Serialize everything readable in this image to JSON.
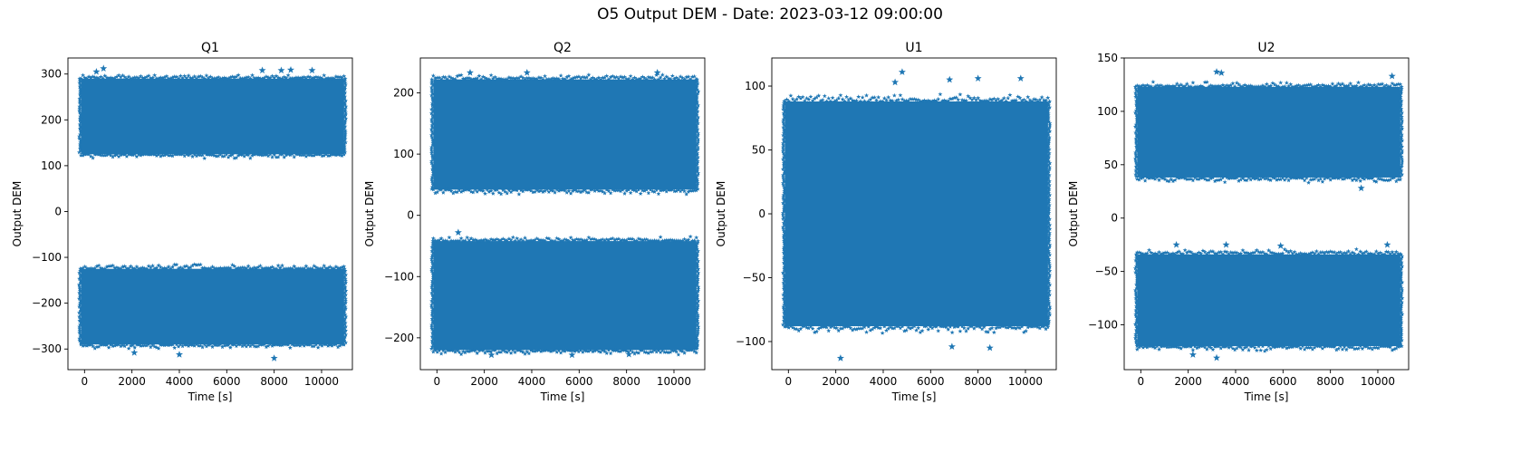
{
  "figure": {
    "title": "O5 Output DEM - Date: 2023-03-12 09:00:00",
    "marker_color": "#1f77b4"
  },
  "chart_data": [
    {
      "type": "scatter",
      "title": "Q1",
      "xlabel": "Time [s]",
      "ylabel": "Output DEM",
      "xlim": [
        -700,
        11300
      ],
      "ylim": [
        -345,
        335
      ],
      "xticks": [
        0,
        2000,
        4000,
        6000,
        8000,
        10000
      ],
      "yticks": [
        -300,
        -200,
        -100,
        0,
        100,
        200,
        300
      ],
      "marker": "star",
      "series": [
        {
          "x_range": [
            0,
            10800
          ],
          "y_band": [
            -290,
            -125
          ],
          "edge_pad": 10
        },
        {
          "x_range": [
            0,
            10800
          ],
          "y_band": [
            125,
            290
          ],
          "edge_pad": 10
        }
      ],
      "outliers": [
        [
          500,
          305
        ],
        [
          800,
          312
        ],
        [
          7500,
          308
        ],
        [
          8300,
          308
        ],
        [
          8700,
          309
        ],
        [
          9600,
          308
        ],
        [
          2100,
          -308
        ],
        [
          4000,
          -312
        ],
        [
          8000,
          -320
        ]
      ]
    },
    {
      "type": "scatter",
      "title": "Q2",
      "xlabel": "Time [s]",
      "ylabel": "Output DEM",
      "xlim": [
        -700,
        11300
      ],
      "ylim": [
        -252,
        257
      ],
      "xticks": [
        0,
        2000,
        4000,
        6000,
        8000,
        10000
      ],
      "yticks": [
        -200,
        -100,
        0,
        100,
        200
      ],
      "marker": "star",
      "series": [
        {
          "x_range": [
            0,
            10800
          ],
          "y_band": [
            -220,
            -42
          ],
          "edge_pad": 8
        },
        {
          "x_range": [
            0,
            10800
          ],
          "y_band": [
            42,
            222
          ],
          "edge_pad": 8
        }
      ],
      "outliers": [
        [
          900,
          -28
        ],
        [
          1400,
          233
        ],
        [
          2300,
          -228
        ],
        [
          3800,
          233
        ],
        [
          5700,
          -228
        ],
        [
          8100,
          -227
        ],
        [
          9300,
          233
        ]
      ]
    },
    {
      "type": "scatter",
      "title": "U1",
      "xlabel": "Time [s]",
      "ylabel": "Output DEM",
      "xlim": [
        -700,
        11300
      ],
      "ylim": [
        -122,
        122
      ],
      "xticks": [
        0,
        2000,
        4000,
        6000,
        8000,
        10000
      ],
      "yticks": [
        -100,
        -50,
        0,
        50,
        100
      ],
      "marker": "star",
      "series": [
        {
          "x_range": [
            0,
            10800
          ],
          "y_band": [
            -88,
            88
          ],
          "edge_pad": 6
        }
      ],
      "outliers": [
        [
          2200,
          -113
        ],
        [
          4800,
          111
        ],
        [
          6900,
          -104
        ],
        [
          8500,
          -105
        ],
        [
          6800,
          105
        ],
        [
          8000,
          106
        ],
        [
          9800,
          106
        ],
        [
          4500,
          103
        ]
      ]
    },
    {
      "type": "scatter",
      "title": "U2",
      "xlabel": "Time [s]",
      "ylabel": "Output DEM",
      "xlim": [
        -700,
        11300
      ],
      "ylim": [
        -142,
        150
      ],
      "xticks": [
        0,
        2000,
        4000,
        6000,
        8000,
        10000
      ],
      "yticks": [
        -100,
        -50,
        0,
        50,
        100,
        150
      ],
      "marker": "star",
      "series": [
        {
          "x_range": [
            0,
            10800
          ],
          "y_band": [
            -120,
            -34
          ],
          "edge_pad": 5
        },
        {
          "x_range": [
            0,
            10800
          ],
          "y_band": [
            38,
            123
          ],
          "edge_pad": 5
        }
      ],
      "outliers": [
        [
          3200,
          137
        ],
        [
          3400,
          136
        ],
        [
          1500,
          -25
        ],
        [
          3600,
          -25
        ],
        [
          5900,
          -26
        ],
        [
          10400,
          -25
        ],
        [
          3200,
          -131
        ],
        [
          9300,
          28
        ],
        [
          10600,
          133
        ],
        [
          2200,
          -128
        ]
      ]
    }
  ]
}
